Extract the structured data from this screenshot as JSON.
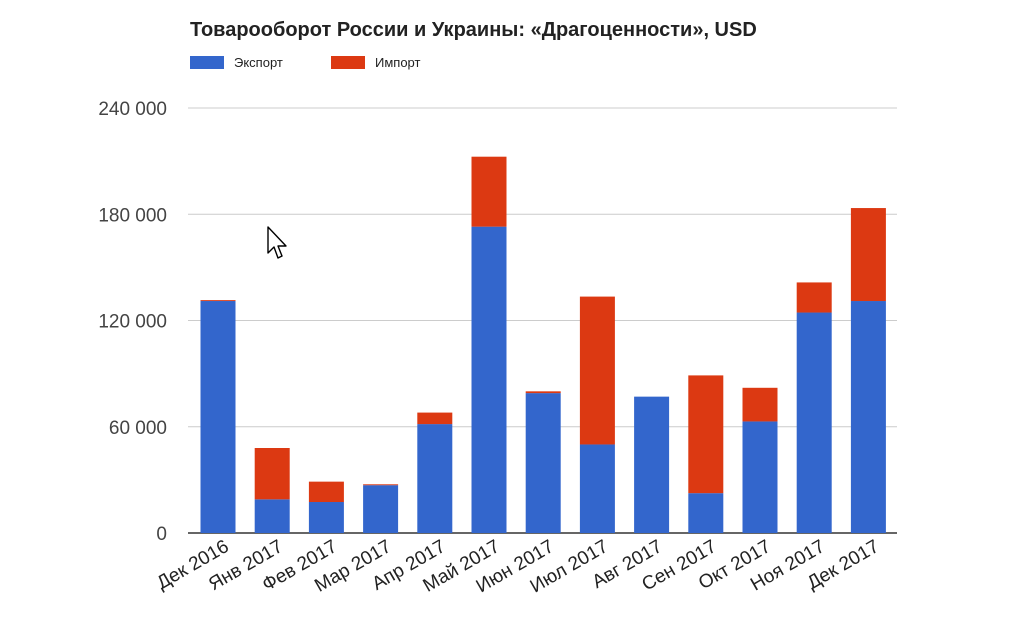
{
  "chart_data": {
    "type": "bar",
    "stacked": true,
    "title": "Товарооборот России и Украины: «Драгоценности», USD",
    "xlabel": "",
    "ylabel": "",
    "ylim": [
      0,
      240000
    ],
    "yticks": [
      0,
      60000,
      120000,
      180000,
      240000
    ],
    "ytick_labels": [
      "0",
      "60 000",
      "120 000",
      "180 000",
      "240 000"
    ],
    "grid": true,
    "legend_position": "top-left",
    "categories": [
      "Дек 2016",
      "Янв 2017",
      "Фев 2017",
      "Мар 2017",
      "Апр 2017",
      "Май 2017",
      "Июн 2017",
      "Июл 2017",
      "Авг 2017",
      "Сен 2017",
      "Окт 2017",
      "Ноя 2017",
      "Дек 2017"
    ],
    "series": [
      {
        "name": "Экспорт",
        "color": "#3366cc",
        "values": [
          131000,
          19000,
          17500,
          27000,
          61500,
          173000,
          79000,
          50000,
          77000,
          22500,
          63000,
          124500,
          131000
        ]
      },
      {
        "name": "Импорт",
        "color": "#dc3912",
        "values": [
          500,
          29000,
          11500,
          500,
          6500,
          39500,
          1000,
          83500,
          0,
          66500,
          19000,
          17000,
          52500
        ]
      }
    ]
  }
}
